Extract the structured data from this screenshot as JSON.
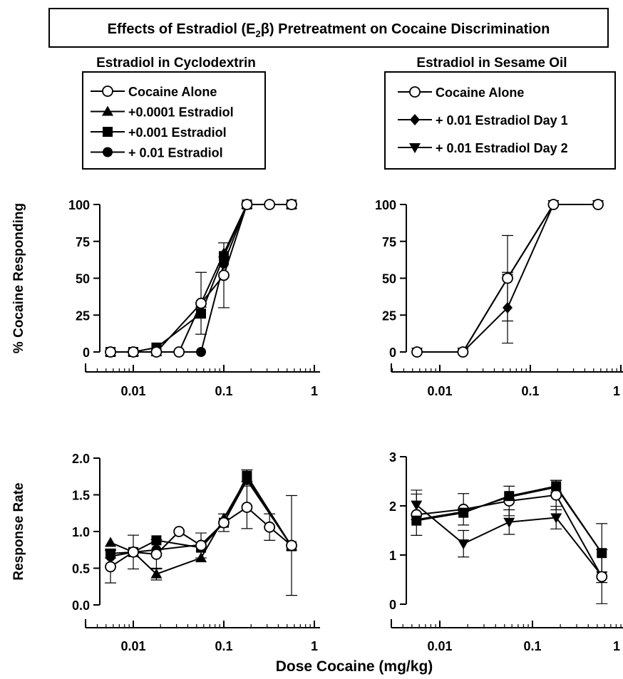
{
  "figure": {
    "title_prefix": "Effects of  Estradiol (E",
    "title_sub": "2",
    "title_suffix": "β) Pretreatment on  Cocaine Discrimination",
    "xlabel": "Dose Cocaine (mg/kg)"
  },
  "panel_titles": {
    "left": "Estradiol in Cyclodextrin",
    "right": "Estradiol in Sesame Oil"
  },
  "legends": {
    "left": [
      {
        "label": "Cocaine Alone",
        "marker": "open-circle"
      },
      {
        "label": "+0.0001 Estradiol",
        "marker": "triangle-up"
      },
      {
        "label": "+0.001 Estradiol",
        "marker": "square"
      },
      {
        "label": "+ 0.01 Estradiol",
        "marker": "filled-circle"
      }
    ],
    "right": [
      {
        "label": "Cocaine Alone",
        "marker": "open-circle"
      },
      {
        "label": "+ 0.01 Estradiol Day 1",
        "marker": "diamond"
      },
      {
        "label": "+ 0.01 Estradiol Day 2",
        "marker": "triangle-down"
      }
    ]
  },
  "chart_data": [
    {
      "id": "cyclodextrin-discrimination",
      "type": "scatter",
      "ylabel": "% Cocaine Responding",
      "xscale": "log",
      "xlim": [
        0.003,
        1
      ],
      "ylim": [
        0,
        100
      ],
      "xtick_labels": [
        "0.01",
        "0.1",
        "1"
      ],
      "xticks": [
        0.01,
        0.1,
        1
      ],
      "ytick_labels": [
        "0",
        "25",
        "50",
        "75",
        "100"
      ],
      "yticks": [
        0,
        25,
        50,
        75,
        100
      ],
      "series": [
        {
          "name": "+0.0001 Estradiol",
          "marker": "triangle-up",
          "x": [
            0.0056,
            0.01,
            0.018,
            0.056,
            0.1,
            0.18,
            0.56
          ],
          "y": [
            0,
            0,
            0,
            33,
            67,
            100,
            100
          ]
        },
        {
          "name": "+0.001 Estradiol",
          "marker": "square",
          "x": [
            0.0056,
            0.01,
            0.018,
            0.056,
            0.1,
            0.18,
            0.56
          ],
          "y": [
            0,
            0,
            3,
            26,
            65,
            100,
            100
          ]
        },
        {
          "name": "+ 0.01 Estradiol",
          "marker": "filled-circle",
          "x": [
            0.0056,
            0.01,
            0.018,
            0.032,
            0.056,
            0.1,
            0.18,
            0.56
          ],
          "y": [
            0,
            0,
            0,
            0,
            0,
            60,
            100,
            100
          ]
        },
        {
          "name": "Cocaine Alone",
          "marker": "open-circle",
          "x": [
            0.0056,
            0.01,
            0.018,
            0.032,
            0.056,
            0.1,
            0.18,
            0.32,
            0.56
          ],
          "y": [
            0,
            0,
            0,
            0,
            33,
            52,
            100,
            100,
            100
          ],
          "err": [
            0,
            0,
            0,
            0,
            21,
            22,
            0,
            0,
            0
          ]
        }
      ]
    },
    {
      "id": "sesame-oil-discrimination",
      "type": "scatter",
      "xscale": "log",
      "xlim": [
        0.003,
        1
      ],
      "ylim": [
        0,
        100
      ],
      "xtick_labels": [
        "0.01",
        "0.1",
        "1"
      ],
      "xticks": [
        0.01,
        0.1,
        1
      ],
      "ytick_labels": [
        "0",
        "25",
        "50",
        "75",
        "100"
      ],
      "yticks": [
        0,
        25,
        50,
        75,
        100
      ],
      "series": [
        {
          "name": "+ 0.01 Estradiol Day 2",
          "marker": "triangle-down",
          "x": [
            0.0056,
            0.018,
            0.056,
            0.18,
            0.56
          ],
          "y": [
            0,
            0,
            50,
            100,
            100
          ]
        },
        {
          "name": "+ 0.01 Estradiol Day 1",
          "marker": "diamond",
          "x": [
            0.0056,
            0.018,
            0.056,
            0.18,
            0.56
          ],
          "y": [
            0,
            0,
            30,
            100,
            100
          ],
          "err": [
            0,
            0,
            24,
            0,
            0
          ]
        },
        {
          "name": "Cocaine Alone",
          "marker": "open-circle",
          "x": [
            0.0056,
            0.018,
            0.056,
            0.18,
            0.56
          ],
          "y": [
            0,
            0,
            50,
            100,
            100
          ],
          "err": [
            0,
            0,
            29,
            0,
            0
          ]
        }
      ]
    },
    {
      "id": "cyclodextrin-rate",
      "type": "scatter",
      "ylabel": "Response Rate",
      "xscale": "log",
      "xlim": [
        0.003,
        1
      ],
      "ylim": [
        0,
        2
      ],
      "xtick_labels": [
        "0.01",
        "0.1",
        "1"
      ],
      "xticks": [
        0.01,
        0.1,
        1
      ],
      "ytick_labels": [
        "0.0",
        "0.5",
        "1.0",
        "1.5",
        "2.0"
      ],
      "yticks": [
        0,
        0.5,
        1,
        1.5,
        2
      ],
      "series": [
        {
          "name": "+0.0001 Estradiol",
          "marker": "triangle-up",
          "x": [
            0.0056,
            0.01,
            0.018,
            0.056,
            0.1,
            0.18,
            0.56
          ],
          "y": [
            0.85,
            0.72,
            0.42,
            0.64,
            1.18,
            1.73,
            0.8
          ],
          "err": [
            0,
            0,
            0.08,
            0,
            0,
            0,
            0
          ]
        },
        {
          "name": "+0.001 Estradiol",
          "marker": "square",
          "x": [
            0.0056,
            0.01,
            0.018,
            0.056,
            0.1,
            0.18,
            0.56
          ],
          "y": [
            0.7,
            0.72,
            0.88,
            0.78,
            1.12,
            1.76,
            0.8
          ],
          "err": [
            0.06,
            0,
            0,
            0,
            0,
            0.08,
            0
          ]
        },
        {
          "name": "+ 0.01 Estradiol",
          "marker": "filled-circle",
          "x": [
            0.0056,
            0.01,
            0.018,
            0.056,
            0.1,
            0.18,
            0.56
          ],
          "y": [
            0.66,
            0.72,
            0.75,
            0.82,
            1.12,
            1.7,
            0.8
          ]
        },
        {
          "name": "Cocaine Alone",
          "marker": "open-circle",
          "x": [
            0.0056,
            0.01,
            0.018,
            0.032,
            0.056,
            0.1,
            0.18,
            0.32,
            0.56
          ],
          "y": [
            0.52,
            0.72,
            0.69,
            1.0,
            0.81,
            1.12,
            1.33,
            1.06,
            0.81
          ],
          "err": [
            0.22,
            0.23,
            0.2,
            0,
            0.17,
            0.12,
            0.29,
            0.18,
            0.68
          ]
        }
      ]
    },
    {
      "id": "sesame-oil-rate",
      "type": "scatter",
      "xscale": "log",
      "xlim": [
        0.003,
        1
      ],
      "ylim": [
        0,
        3
      ],
      "xtick_labels": [
        "0.01",
        "0.1",
        "1"
      ],
      "xticks": [
        0.01,
        0.1,
        1
      ],
      "ytick_labels": [
        "0",
        "1",
        "2",
        "3"
      ],
      "yticks": [
        0,
        1,
        2,
        3
      ],
      "series": [
        {
          "name": "+ 0.01 Estradiol Day 2",
          "marker": "triangle-down",
          "x": [
            0.0056,
            0.018,
            0.056,
            0.18,
            0.56
          ],
          "y": [
            2.02,
            1.23,
            1.67,
            1.76,
            0.58
          ],
          "err": [
            0.3,
            0.27,
            0.25,
            0.23,
            0
          ]
        },
        {
          "name": "+ 0.01 Estradiol Day 1",
          "marker": "diamond",
          "x": [
            0.0056,
            0.018,
            0.056,
            0.18,
            0.56
          ],
          "y": [
            1.72,
            1.88,
            2.18,
            2.38,
            1.04
          ]
        },
        {
          "name": "Cocaine Alone",
          "marker": "open-circle",
          "x": [
            0.0056,
            0.018,
            0.056,
            0.18,
            0.56
          ],
          "y": [
            1.82,
            1.93,
            2.1,
            2.22,
            0.56
          ],
          "err": [
            0.42,
            0.32,
            0.3,
            0.3,
            0.55
          ]
        },
        {
          "name": "+0.001 Estradiol",
          "marker": "square",
          "x": [
            0.0056,
            0.018,
            0.056,
            0.18,
            0.56
          ],
          "y": [
            1.7,
            1.86,
            2.2,
            2.4,
            1.04
          ],
          "err": [
            0,
            0,
            0,
            0.12,
            0.6
          ]
        }
      ]
    }
  ]
}
